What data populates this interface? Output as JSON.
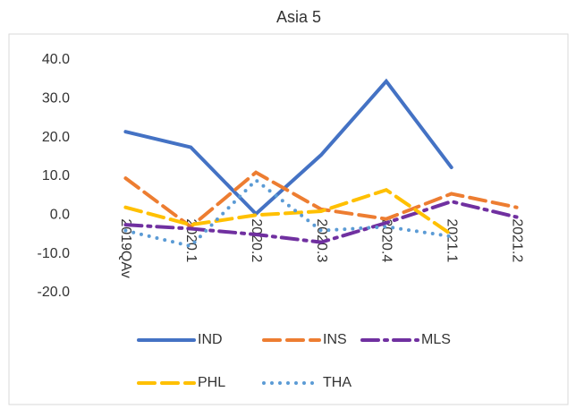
{
  "chart_data": {
    "type": "line",
    "title": "Asia 5",
    "categories": [
      "2019QAv",
      "2020.1",
      "2020.2",
      "2020.3",
      "2020.4",
      "2021.1",
      "2021.2"
    ],
    "series": [
      {
        "name": "IND",
        "color": "#4472c4",
        "dash": "solid",
        "values": [
          21.5,
          17.5,
          0.3,
          15.5,
          34.5,
          12.3,
          null
        ]
      },
      {
        "name": "INS",
        "color": "#ed7d31",
        "dash": "dash",
        "values": [
          9.5,
          -3,
          11,
          1.5,
          -1,
          5.5,
          2
        ]
      },
      {
        "name": "MLS",
        "color": "#7030a0",
        "dash": "dashdot",
        "values": [
          -2.5,
          -3.5,
          -5,
          -7,
          -2,
          3.5,
          -0.5
        ]
      },
      {
        "name": "PHL",
        "color": "#ffc000",
        "dash": "dash",
        "values": [
          2,
          -2.5,
          0,
          1,
          6.5,
          -5,
          null
        ]
      },
      {
        "name": "THA",
        "color": "#5b9bd5",
        "dash": "dot",
        "values": [
          -4,
          -8,
          9,
          -4,
          -3,
          -5.5,
          null
        ]
      }
    ],
    "ylim": [
      -20,
      40
    ],
    "yticks": [
      {
        "value": -20,
        "label": "-20.0"
      },
      {
        "value": -10,
        "label": "-10.0"
      },
      {
        "value": 0,
        "label": "0.0"
      },
      {
        "value": 10,
        "label": "10.0"
      },
      {
        "value": 20,
        "label": "20.0"
      },
      {
        "value": 30,
        "label": "30.0"
      },
      {
        "value": 40,
        "label": "40.0"
      }
    ],
    "grid": false,
    "legend": "bottom"
  }
}
